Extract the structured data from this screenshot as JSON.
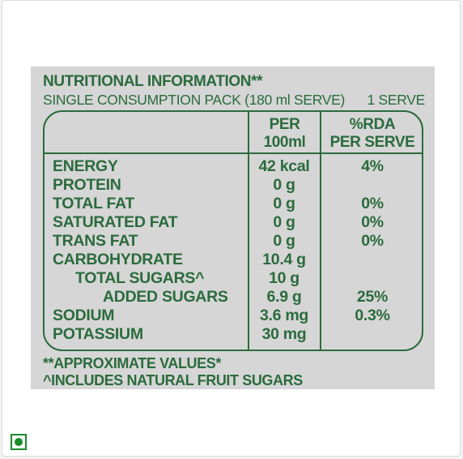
{
  "panel": {
    "title": "NUTRITIONAL INFORMATION**",
    "subtitle_left": "SINGLE CONSUMPTION PACK (180 ml SERVE)",
    "subtitle_right": "1 SERVE"
  },
  "table": {
    "header_per_line1": "PER",
    "header_per_line2": "100ml",
    "header_rda_line1": "%RDA",
    "header_rda_line2": "PER SERVE",
    "rows": [
      {
        "name": "ENERGY",
        "per": "42 kcal",
        "rda": "4%"
      },
      {
        "name": "PROTEIN",
        "per": "0 g",
        "rda": ""
      },
      {
        "name": "TOTAL FAT",
        "per": "0 g",
        "rda": "0%"
      },
      {
        "name": "SATURATED FAT",
        "per": "0 g",
        "rda": "0%"
      },
      {
        "name": "TRANS FAT",
        "per": "0 g",
        "rda": "0%"
      },
      {
        "name": "CARBOHYDRATE",
        "per": "10.4 g",
        "rda": ""
      },
      {
        "name": "TOTAL SUGARS^",
        "per": "10 g",
        "rda": ""
      },
      {
        "name": "ADDED SUGARS",
        "per": "6.9 g",
        "rda": "25%"
      },
      {
        "name": "SODIUM",
        "per": "3.6 mg",
        "rda": "0.3%"
      },
      {
        "name": "POTASSIUM",
        "per": "30 mg",
        "rda": ""
      }
    ]
  },
  "footnotes": {
    "approx": "**APPROXIMATE VALUES*",
    "includes": "^INCLUDES NATURAL FRUIT SUGARS"
  },
  "badge": {
    "icon": "veg-mark-icon",
    "color": "#1a8a2a"
  },
  "colors": {
    "text": "#2b6b3d",
    "panel": "#d6d6d6"
  }
}
